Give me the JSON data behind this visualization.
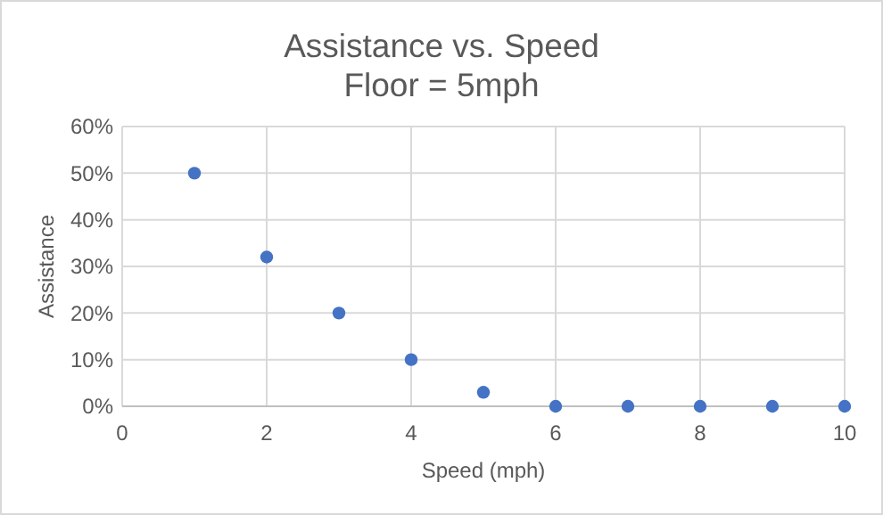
{
  "chart_data": {
    "type": "scatter",
    "title": "Assistance vs. Speed",
    "subtitle": "Floor = 5mph",
    "xlabel": "Speed (mph)",
    "ylabel": "Assistance",
    "x": [
      1,
      2,
      3,
      4,
      5,
      6,
      7,
      8,
      9,
      10
    ],
    "series": [
      {
        "color": "#4472c4",
        "values": [
          50,
          32,
          20,
          10,
          3,
          0,
          0,
          0,
          0,
          0
        ]
      }
    ],
    "xlim": [
      0,
      10
    ],
    "xticks": [
      0,
      2,
      4,
      6,
      8,
      10
    ],
    "ylim": [
      0,
      60
    ],
    "yticks": [
      {
        "value": 0,
        "label": "0%"
      },
      {
        "value": 10,
        "label": "10%"
      },
      {
        "value": 20,
        "label": "20%"
      },
      {
        "value": 30,
        "label": "30%"
      },
      {
        "value": 40,
        "label": "40%"
      },
      {
        "value": 50,
        "label": "50%"
      },
      {
        "value": 60,
        "label": "60%"
      }
    ],
    "grid": true,
    "marker": "circle"
  }
}
